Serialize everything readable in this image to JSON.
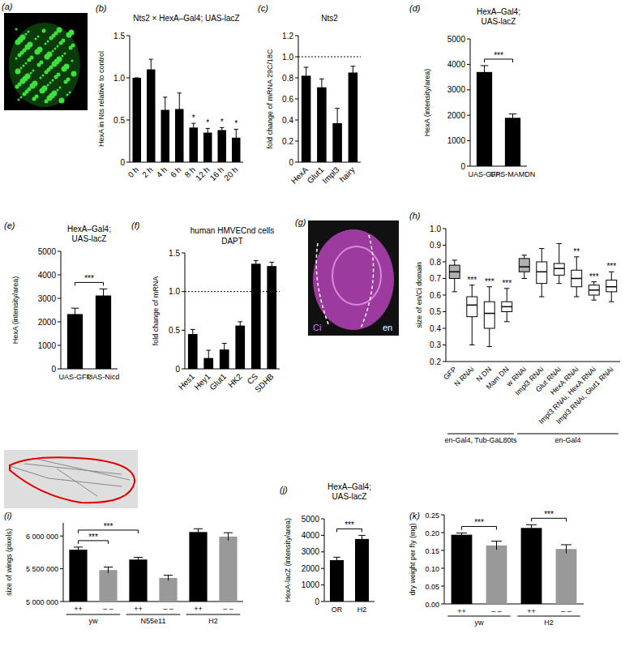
{
  "chart_data": [
    {
      "panel": "(b)",
      "type": "bar",
      "title": "Nts2 × HexA–Gal4; UAS-lacZ",
      "y_label": "HexA in Nts relative to control",
      "categories": [
        "0 h",
        "2 h",
        "4 h",
        "6 h",
        "8 h",
        "12 h",
        "16 h",
        "20 h"
      ],
      "values": [
        1.0,
        1.1,
        0.62,
        0.63,
        0.41,
        0.35,
        0.38,
        0.29
      ],
      "errors": [
        0,
        0.12,
        0.15,
        0.19,
        0.05,
        0.05,
        0.03,
        0.1
      ],
      "annotations": [
        null,
        null,
        null,
        null,
        "*",
        "*",
        "*",
        "*"
      ],
      "color": "#000000",
      "ylim": [
        0,
        1.5
      ],
      "yticks": [
        0,
        0.5,
        {
          "value": 1,
          "label": "1.0"
        },
        1.5
      ]
    },
    {
      "panel": "(c)",
      "type": "bar",
      "title": "Nts2",
      "y_label": "fold change of mRNA 29C/18C",
      "categories": [
        "HexA",
        "Glut1",
        "Impl3",
        "hairy"
      ],
      "values": [
        0.82,
        0.71,
        0.37,
        0.85
      ],
      "errors": [
        0.08,
        0.08,
        0.14,
        0.06
      ],
      "reference_line": 1,
      "color": "#000000",
      "ylim": [
        0,
        1.2
      ],
      "yticks": [
        0,
        0.2,
        0.4,
        0.6,
        0.8,
        {
          "value": 1,
          "label": "1.0"
        },
        1.2
      ]
    },
    {
      "panel": "(d)",
      "type": "bar",
      "title": "HexA–Gal4; UAS-lacZ",
      "y_label": "HexA (intensity/area)",
      "categories": [
        "UAS-GFP",
        "UAS-MAMDN"
      ],
      "values": [
        3700,
        1900
      ],
      "errors": [
        250,
        150
      ],
      "brackets": [
        {
          "from": 0,
          "to": 1,
          "label": "***"
        }
      ],
      "color": "#000000",
      "ylim": [
        0,
        5000
      ],
      "yticks": [
        0,
        1000,
        2000,
        3000,
        4000,
        5000
      ]
    },
    {
      "panel": "(e)",
      "type": "bar",
      "title": "HexA–Gal4; UAS-lacZ",
      "y_label": "HexA (intensity/area)",
      "categories": [
        "UAS-GFP",
        "UAS-Nicd"
      ],
      "values": [
        2330,
        3120
      ],
      "errors": [
        250,
        280
      ],
      "brackets": [
        {
          "from": 0,
          "to": 1,
          "label": "***"
        }
      ],
      "color": "#000000",
      "ylim": [
        0,
        5000
      ],
      "yticks": [
        0,
        1000,
        2000,
        3000,
        4000,
        5000
      ]
    },
    {
      "panel": "(f)",
      "type": "bar",
      "title": "human HMVECnd cells",
      "subtitle": "DAPT",
      "y_label": "fold change of mRNA",
      "categories": [
        "Hes1",
        "Hey1",
        "Glut1",
        "HK2",
        "CS",
        "SDHB"
      ],
      "values": [
        0.45,
        0.14,
        0.25,
        0.56,
        1.36,
        1.33
      ],
      "errors": [
        0.06,
        0.1,
        0.08,
        0.05,
        0.04,
        0.05
      ],
      "reference_line": 1,
      "color": "#000000",
      "ylim": [
        0,
        1.5
      ],
      "yticks": [
        0,
        0.5,
        {
          "value": 1,
          "label": "1.0"
        },
        1.5
      ]
    },
    {
      "panel": "(h)",
      "type": "box",
      "y_label": "size of en/Ci domain",
      "categories": [
        "GFP",
        "N RNAi",
        "N DN",
        "Mam DN",
        "w RNAi",
        "Impl3 RNAi",
        "Glut RNAi",
        "HexA RNAi",
        "Impl3 RNAi, HexA RNAi",
        "Impl3 RNAi, Glut1 RNAi"
      ],
      "boxes": [
        {
          "min": 0.62,
          "q1": 0.7,
          "median": 0.74,
          "q3": 0.78,
          "max": 0.81
        },
        {
          "min": 0.3,
          "q1": 0.47,
          "median": 0.54,
          "q3": 0.59,
          "max": 0.66
        },
        {
          "min": 0.29,
          "q1": 0.4,
          "median": 0.49,
          "q3": 0.56,
          "max": 0.65
        },
        {
          "min": 0.44,
          "q1": 0.5,
          "median": 0.53,
          "q3": 0.56,
          "max": 0.64
        },
        {
          "min": 0.7,
          "q1": 0.74,
          "median": 0.77,
          "q3": 0.82,
          "max": 0.84
        },
        {
          "min": 0.59,
          "q1": 0.67,
          "median": 0.74,
          "q3": 0.8,
          "max": 0.88
        },
        {
          "min": 0.67,
          "q1": 0.72,
          "median": 0.76,
          "q3": 0.79,
          "max": 0.91
        },
        {
          "min": 0.59,
          "q1": 0.65,
          "median": 0.7,
          "q3": 0.75,
          "max": 0.83
        },
        {
          "min": 0.57,
          "q1": 0.6,
          "median": 0.63,
          "q3": 0.66,
          "max": 0.68
        },
        {
          "min": 0.56,
          "q1": 0.62,
          "median": 0.65,
          "q3": 0.69,
          "max": 0.74
        }
      ],
      "colors": [
        "#b0b0b0",
        "#ffffff",
        "#ffffff",
        "#ffffff",
        "#b0b0b0",
        "#ffffff",
        "#ffffff",
        "#ffffff",
        "#ffffff",
        "#ffffff"
      ],
      "annotations": [
        null,
        "***",
        "***",
        "***",
        null,
        null,
        null,
        "**",
        "***",
        "***"
      ],
      "groups": [
        {
          "label": "en-Gal4, Tub-GaL80ts",
          "start": 0,
          "end": 3
        },
        {
          "label": "en-Gal4",
          "start": 4,
          "end": 9
        }
      ],
      "ylim": [
        0.2,
        1.0
      ],
      "yticks": [
        0.2,
        0.3,
        0.4,
        0.5,
        0.6,
        0.7,
        0.8,
        0.9,
        {
          "value": 1,
          "label": "1.0"
        }
      ]
    },
    {
      "panel": "(i)",
      "type": "bar",
      "y_label": "size of wings (pixels)",
      "categories": [
        "++",
        "– –",
        "++",
        "– –",
        "++",
        "– –"
      ],
      "values": [
        5790000,
        5480000,
        5640000,
        5360000,
        6060000,
        5990000
      ],
      "errors": [
        40000,
        45000,
        35000,
        40000,
        50000,
        60000
      ],
      "colors": [
        "#000000",
        "#999999",
        "#000000",
        "#999999",
        "#000000",
        "#999999"
      ],
      "brackets": [
        {
          "from": 0,
          "to": 1,
          "label": "***"
        },
        {
          "from": 0,
          "to": 2,
          "label": "***"
        }
      ],
      "groups": [
        {
          "label": "yw",
          "start": 0,
          "end": 1
        },
        {
          "label": "N55e11",
          "start": 2,
          "end": 3
        },
        {
          "label": "H2",
          "start": 4,
          "end": 5
        }
      ],
      "ylim": [
        5000000,
        6200000
      ],
      "yticks": [
        {
          "value": 5000000,
          "label": "5 000 000"
        },
        {
          "value": 5500000,
          "label": "5 500 000"
        },
        {
          "value": 6000000,
          "label": "6 000 000"
        }
      ]
    },
    {
      "panel": "(j)",
      "type": "bar",
      "title": "HexA–Gal4; UAS-lacZ",
      "y_label": "HexA-lacZ (intensity/area)",
      "categories": [
        "OR",
        "H2"
      ],
      "values": [
        2500,
        3780
      ],
      "errors": [
        180,
        220
      ],
      "brackets": [
        {
          "from": 0,
          "to": 1,
          "label": "***"
        }
      ],
      "color": "#000000",
      "ylim": [
        0,
        5000
      ],
      "yticks": [
        0,
        1000,
        2000,
        3000,
        4000,
        5000
      ]
    },
    {
      "panel": "(k)",
      "type": "bar",
      "y_label": "dry weight per fly (mg)",
      "categories": [
        "++",
        "– –",
        "++",
        "– –"
      ],
      "values": [
        0.194,
        0.164,
        0.213,
        0.154
      ],
      "errors": [
        0.005,
        0.012,
        0.009,
        0.012
      ],
      "colors": [
        "#000000",
        "#999999",
        "#000000",
        "#999999"
      ],
      "brackets": [
        {
          "from": 0,
          "to": 1,
          "label": "***"
        },
        {
          "from": 2,
          "to": 3,
          "label": "***"
        }
      ],
      "groups": [
        {
          "label": "yw",
          "start": 0,
          "end": 1
        },
        {
          "label": "H2",
          "start": 2,
          "end": 3
        }
      ],
      "ylim": [
        0,
        0.25
      ],
      "yticks": [
        {
          "value": 0,
          "label": "0.00"
        },
        0.05,
        {
          "value": 0.1,
          "label": "0.10"
        },
        0.15,
        {
          "value": 0.2,
          "label": "0.20"
        },
        0.25
      ]
    }
  ],
  "images": [
    {
      "panel": "(a)"
    },
    {
      "panel": "(g)",
      "labels": [
        "Ci",
        "en"
      ]
    }
  ]
}
